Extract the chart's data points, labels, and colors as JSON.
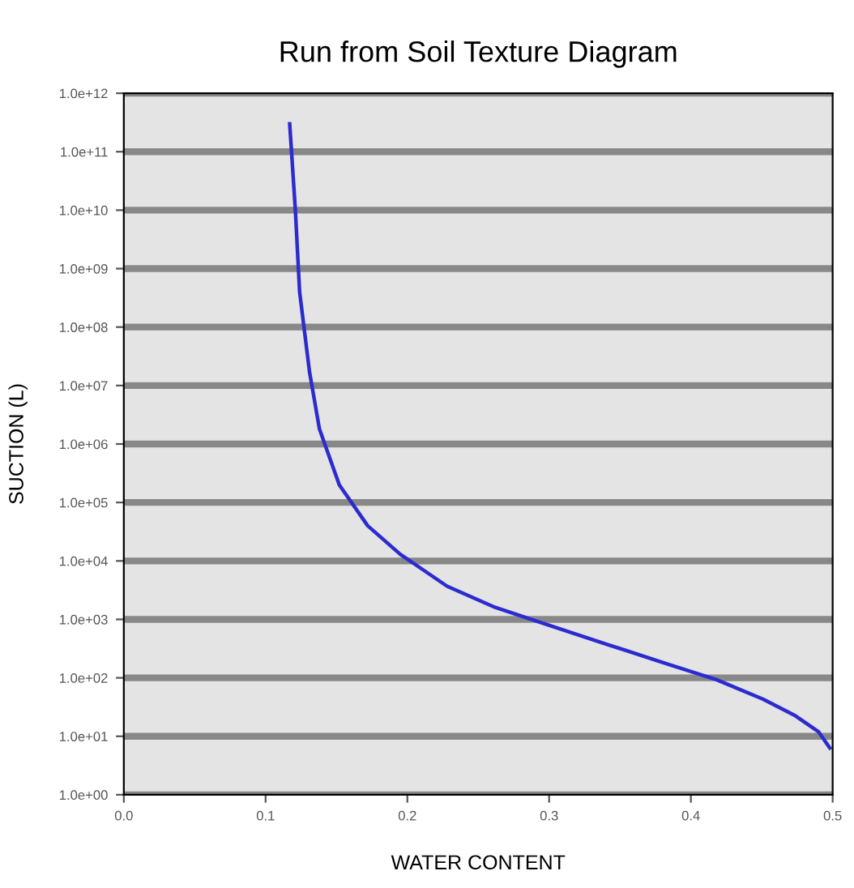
{
  "chart_data": {
    "type": "line",
    "title": "Run from Soil Texture Diagram",
    "xlabel": "WATER CONTENT",
    "ylabel": "SUCTION (L)",
    "log": "y",
    "grid": "y",
    "marker": "none",
    "line_style": "solid",
    "xlim": [
      0.0,
      0.5
    ],
    "xticks": [
      {
        "value": 0.0,
        "label": "0.0"
      },
      0.1,
      0.2,
      0.3,
      0.4,
      0.5
    ],
    "ylim": [
      1,
      1000000000000.0
    ],
    "yticks": [
      {
        "value": 1,
        "label": "1.0e+00"
      },
      {
        "value": 10,
        "label": "1.0e+01"
      },
      {
        "value": 100,
        "label": "1.0e+02"
      },
      {
        "value": 1000,
        "label": "1.0e+03"
      },
      {
        "value": 10000,
        "label": "1.0e+04"
      },
      {
        "value": 100000,
        "label": "1.0e+05"
      },
      {
        "value": 1000000,
        "label": "1.0e+06"
      },
      {
        "value": 10000000,
        "label": "1.0e+07"
      },
      {
        "value": 100000000,
        "label": "1.0e+08"
      },
      {
        "value": 1000000000,
        "label": "1.0e+09"
      },
      {
        "value": 10000000000,
        "label": "1.0e+10"
      },
      {
        "value": 100000000000,
        "label": "1.0e+11"
      },
      {
        "value": 1000000000000,
        "label": "1.0e+12"
      }
    ],
    "x": [
      0.117,
      0.121,
      0.124,
      0.131,
      0.138,
      0.152,
      0.172,
      0.195,
      0.228,
      0.262,
      0.295,
      0.34,
      0.384,
      0.418,
      0.451,
      0.473,
      0.49,
      0.498
    ],
    "series": [
      {
        "color": "#2b2bd0",
        "values": [
          300000000000.0,
          10000000000.0,
          400000000.0,
          17000000.0,
          1800000.0,
          200000.0,
          40000.0,
          13000.0,
          3700,
          1600,
          870,
          380,
          170,
          93,
          43,
          23,
          12,
          6.3
        ]
      }
    ]
  }
}
